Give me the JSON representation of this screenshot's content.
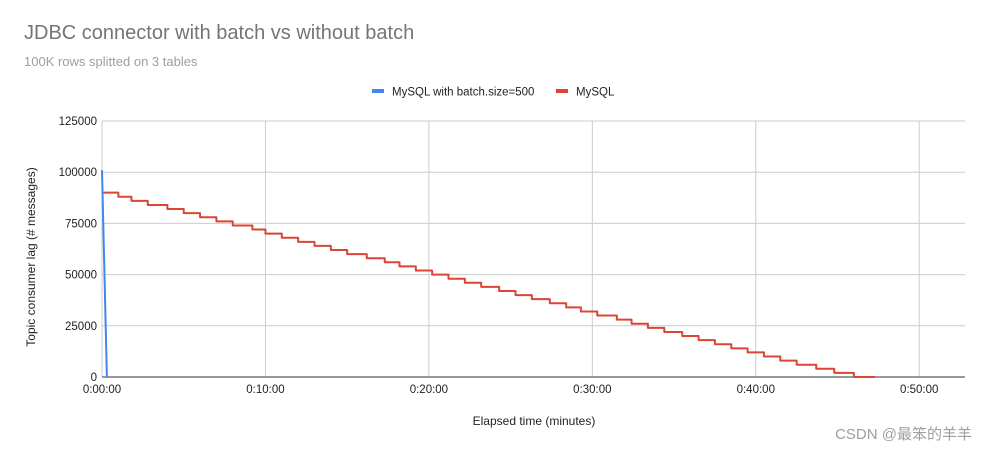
{
  "chart_data": {
    "type": "line",
    "title": "JDBC connector with batch vs without batch",
    "subtitle": "100K rows splitted on 3 tables",
    "xlabel": "Elapsed time (minutes)",
    "ylabel": "Topic consumer lag (# messages)",
    "x_tick_labels": [
      "0:00:00",
      "0:10:00",
      "0:20:00",
      "0:30:00",
      "0:40:00",
      "0:50:00"
    ],
    "y_tick_labels": [
      "0",
      "25000",
      "50000",
      "75000",
      "100000",
      "125000"
    ],
    "xlim_minutes": [
      0,
      52.8
    ],
    "ylim": [
      0,
      125000
    ],
    "grid": true,
    "legend_position": "top-center",
    "series": [
      {
        "name": "MySQL with batch.size=500",
        "color": "#4285F4",
        "points": [
          [
            0,
            101000
          ],
          [
            0.3,
            0
          ]
        ]
      },
      {
        "name": "MySQL",
        "color": "#DB4437",
        "points": [
          [
            0,
            90000
          ],
          [
            1,
            90000
          ],
          [
            1,
            88000
          ],
          [
            1.8,
            88000
          ],
          [
            1.8,
            86000
          ],
          [
            2.8,
            86000
          ],
          [
            2.8,
            84000
          ],
          [
            4,
            84000
          ],
          [
            4,
            82000
          ],
          [
            5,
            82000
          ],
          [
            5,
            80000
          ],
          [
            6,
            80000
          ],
          [
            6,
            78000
          ],
          [
            7,
            78000
          ],
          [
            7,
            76000
          ],
          [
            8,
            76000
          ],
          [
            8,
            74000
          ],
          [
            9.2,
            74000
          ],
          [
            9.2,
            72000
          ],
          [
            10,
            72000
          ],
          [
            10,
            70000
          ],
          [
            11,
            70000
          ],
          [
            11,
            68000
          ],
          [
            12,
            68000
          ],
          [
            12,
            66000
          ],
          [
            13,
            66000
          ],
          [
            13,
            64000
          ],
          [
            14,
            64000
          ],
          [
            14,
            62000
          ],
          [
            15,
            62000
          ],
          [
            15,
            60000
          ],
          [
            16.2,
            60000
          ],
          [
            16.2,
            58000
          ],
          [
            17.3,
            58000
          ],
          [
            17.3,
            56000
          ],
          [
            18.2,
            56000
          ],
          [
            18.2,
            54000
          ],
          [
            19.2,
            54000
          ],
          [
            19.2,
            52000
          ],
          [
            20.2,
            52000
          ],
          [
            20.2,
            50000
          ],
          [
            21.2,
            50000
          ],
          [
            21.2,
            48000
          ],
          [
            22.2,
            48000
          ],
          [
            22.2,
            46000
          ],
          [
            23.2,
            46000
          ],
          [
            23.2,
            44000
          ],
          [
            24.3,
            44000
          ],
          [
            24.3,
            42000
          ],
          [
            25.3,
            42000
          ],
          [
            25.3,
            40000
          ],
          [
            26.3,
            40000
          ],
          [
            26.3,
            38000
          ],
          [
            27.4,
            38000
          ],
          [
            27.4,
            36000
          ],
          [
            28.4,
            36000
          ],
          [
            28.4,
            34000
          ],
          [
            29.3,
            34000
          ],
          [
            29.3,
            32000
          ],
          [
            30.3,
            32000
          ],
          [
            30.3,
            30000
          ],
          [
            31.5,
            30000
          ],
          [
            31.5,
            28000
          ],
          [
            32.4,
            28000
          ],
          [
            32.4,
            26000
          ],
          [
            33.4,
            26000
          ],
          [
            33.4,
            24000
          ],
          [
            34.4,
            24000
          ],
          [
            34.4,
            22000
          ],
          [
            35.5,
            22000
          ],
          [
            35.5,
            20000
          ],
          [
            36.5,
            20000
          ],
          [
            36.5,
            18000
          ],
          [
            37.5,
            18000
          ],
          [
            37.5,
            16000
          ],
          [
            38.5,
            16000
          ],
          [
            38.5,
            14000
          ],
          [
            39.5,
            14000
          ],
          [
            39.5,
            12000
          ],
          [
            40.5,
            12000
          ],
          [
            40.5,
            10000
          ],
          [
            41.5,
            10000
          ],
          [
            41.5,
            8000
          ],
          [
            42.5,
            8000
          ],
          [
            42.5,
            6000
          ],
          [
            43.7,
            6000
          ],
          [
            43.7,
            4000
          ],
          [
            44.8,
            4000
          ],
          [
            44.8,
            2000
          ],
          [
            46,
            2000
          ],
          [
            46,
            0
          ],
          [
            47.3,
            0
          ]
        ]
      }
    ]
  },
  "watermark": "CSDN @最笨的羊羊"
}
